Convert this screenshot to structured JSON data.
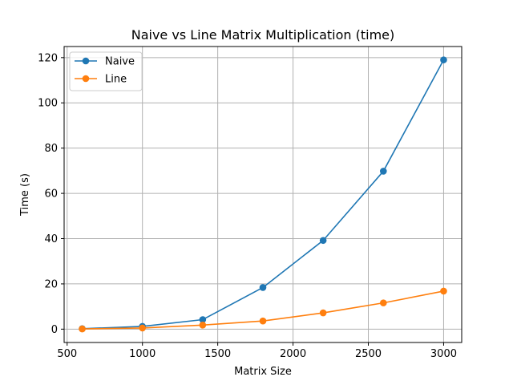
{
  "chart_data": {
    "type": "line",
    "title": "Naive vs Line Matrix Multiplication (time)",
    "xlabel": "Matrix Size",
    "ylabel": "Time (s)",
    "x": [
      600,
      1000,
      1400,
      1800,
      2200,
      2600,
      3000
    ],
    "xlim": [
      480,
      3120
    ],
    "ylim": [
      -5.9,
      124.9
    ],
    "xticks": [
      500,
      1000,
      1500,
      2000,
      2500,
      3000
    ],
    "xtick_labels": [
      "500",
      "1000",
      "1500",
      "2000",
      "2500",
      "3000"
    ],
    "yticks": [
      0,
      20,
      40,
      60,
      80,
      100,
      120
    ],
    "ytick_labels": [
      "0",
      "20",
      "40",
      "60",
      "80",
      "100",
      "120"
    ],
    "grid": true,
    "legend_position": "top-left",
    "series": [
      {
        "name": "Naive",
        "color": "#1f77b4",
        "values": [
          0.2,
          1.2,
          4.2,
          18.4,
          39.2,
          69.8,
          119.0
        ]
      },
      {
        "name": "Line",
        "color": "#ff7f0e",
        "values": [
          0.1,
          0.5,
          1.8,
          3.6,
          7.2,
          11.6,
          16.8
        ]
      }
    ]
  }
}
